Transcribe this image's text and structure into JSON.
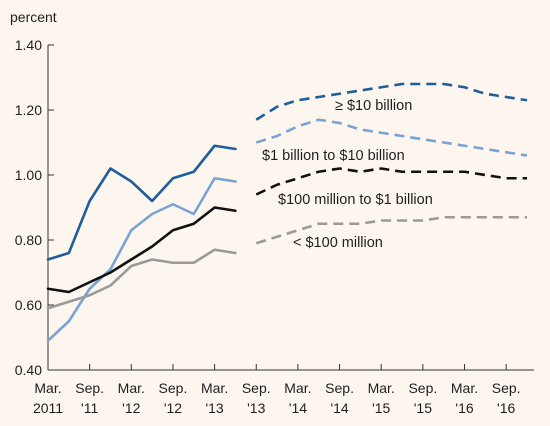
{
  "chart_data": {
    "type": "line",
    "title": "",
    "xlabel": "",
    "ylabel": "percent",
    "ylim": [
      0.4,
      1.4
    ],
    "yticks": [
      "0.40",
      "0.60",
      "0.80",
      "1.00",
      "1.20",
      "1.40"
    ],
    "x": [
      "Mar. 2011",
      "Jun. 2011",
      "Sep. 2011",
      "Dec. 2011",
      "Mar. 2012",
      "Jun. 2012",
      "Sep. 2012",
      "Dec. 2012",
      "Mar. 2013",
      "Jun. 2013",
      "Sep. 2013",
      "Dec. 2013",
      "Mar. 2014",
      "Jun. 2014",
      "Sep. 2014",
      "Dec. 2014",
      "Mar. 2015",
      "Jun. 2015",
      "Sep. 2015",
      "Dec. 2015",
      "Mar. 2016",
      "Jun. 2016",
      "Sep. 2016",
      "Dec. 2016"
    ],
    "xticks": [
      {
        "line1": "Mar.",
        "line2": "2011"
      },
      {
        "line1": "Sep.",
        "line2": "'11"
      },
      {
        "line1": "Mar.",
        "line2": "'12"
      },
      {
        "line1": "Sep.",
        "line2": "'12"
      },
      {
        "line1": "Mar.",
        "line2": "'13"
      },
      {
        "line1": "Sep.",
        "line2": "'13"
      },
      {
        "line1": "Mar.",
        "line2": "'14"
      },
      {
        "line1": "Sep.",
        "line2": "'14"
      },
      {
        "line1": "Mar.",
        "line2": "'15"
      },
      {
        "line1": "Sep.",
        "line2": "'15"
      },
      {
        "line1": "Mar.",
        "line2": "'16"
      },
      {
        "line1": "Sep.",
        "line2": "'16"
      }
    ],
    "actual_through": "Jun. 2013",
    "forecast_from": "Sep. 2013",
    "legend": "inline annotations",
    "series": [
      {
        "name": "≥ $10 billion",
        "color": "#1f5d9c",
        "values": [
          0.74,
          0.76,
          0.92,
          1.02,
          0.98,
          0.92,
          0.99,
          1.01,
          1.09,
          1.08,
          1.17,
          1.21,
          1.23,
          1.24,
          1.25,
          1.26,
          1.27,
          1.28,
          1.28,
          1.28,
          1.27,
          1.25,
          1.24,
          1.23
        ]
      },
      {
        "name": "$1 billion to $10 billion",
        "color": "#7aa3d4",
        "values": [
          0.49,
          0.55,
          0.65,
          0.71,
          0.83,
          0.88,
          0.91,
          0.88,
          0.99,
          0.98,
          1.1,
          1.12,
          1.15,
          1.17,
          1.16,
          1.14,
          1.13,
          1.12,
          1.11,
          1.1,
          1.09,
          1.08,
          1.07,
          1.06
        ]
      },
      {
        "name": "$100 million to $1 billion",
        "color": "#111111",
        "values": [
          0.65,
          0.64,
          0.67,
          0.7,
          0.74,
          0.78,
          0.83,
          0.85,
          0.9,
          0.89,
          0.94,
          0.97,
          0.99,
          1.01,
          1.02,
          1.01,
          1.02,
          1.01,
          1.01,
          1.01,
          1.01,
          1.0,
          0.99,
          0.99
        ]
      },
      {
        "name": "< $100 million",
        "color": "#9a9a9a",
        "values": [
          0.59,
          0.61,
          0.63,
          0.66,
          0.72,
          0.74,
          0.73,
          0.73,
          0.77,
          0.76,
          0.79,
          0.81,
          0.83,
          0.85,
          0.85,
          0.85,
          0.86,
          0.86,
          0.86,
          0.87,
          0.87,
          0.87,
          0.87,
          0.87
        ]
      }
    ]
  }
}
